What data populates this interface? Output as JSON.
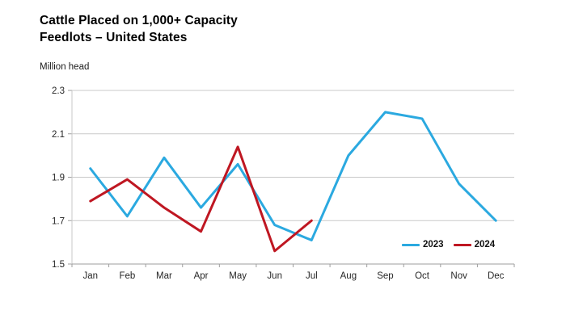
{
  "header": {
    "title_line1": "Cattle Placed on 1,000+ Capacity",
    "title_line2": "Feedlots – United States",
    "units_label": "Million head"
  },
  "colors": {
    "series_2023": "#2BA9E0",
    "series_2024": "#BF1722",
    "gridline": "#c9c9c9",
    "axis": "#9e9e9e",
    "tick_label": "#262626"
  },
  "chart_data": {
    "type": "line",
    "title": "Cattle Placed on 1,000+ Capacity Feedlots – United States",
    "ylabel": "Million head",
    "xlabel": "",
    "categories": [
      "Jan",
      "Feb",
      "Mar",
      "Apr",
      "May",
      "Jun",
      "Jul",
      "Aug",
      "Sep",
      "Oct",
      "Nov",
      "Dec"
    ],
    "ylim": [
      1.5,
      2.3
    ],
    "yticks": [
      1.5,
      1.7,
      1.9,
      2.1,
      2.3
    ],
    "grid": true,
    "legend_position": "inside-bottom-right",
    "series": [
      {
        "name": "2023",
        "color": "#2BA9E0",
        "values": [
          1.94,
          1.72,
          1.99,
          1.76,
          1.96,
          1.68,
          1.61,
          2.0,
          2.2,
          2.17,
          1.87,
          1.7
        ]
      },
      {
        "name": "2024",
        "color": "#BF1722",
        "values": [
          1.79,
          1.89,
          1.76,
          1.65,
          2.04,
          1.56,
          1.7
        ]
      }
    ]
  }
}
